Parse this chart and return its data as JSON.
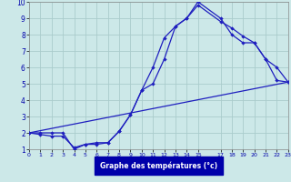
{
  "line1_x": [
    0,
    1,
    2,
    3,
    4,
    5,
    6,
    7,
    8,
    9,
    10,
    11,
    12,
    13,
    14,
    15,
    17,
    18,
    19,
    20,
    21,
    22,
    23
  ],
  "line1_y": [
    2,
    2,
    2,
    2,
    1,
    1.3,
    1.3,
    1.4,
    2.1,
    3.1,
    4.6,
    6.0,
    7.8,
    8.5,
    9.0,
    9.8,
    8.8,
    8.4,
    7.9,
    7.5,
    6.5,
    5.2,
    5.1
  ],
  "line2_x": [
    0,
    1,
    2,
    3,
    4,
    5,
    6,
    7,
    8,
    9,
    10,
    11,
    12,
    13,
    14,
    15,
    17,
    18,
    19,
    20,
    21,
    22,
    23
  ],
  "line2_y": [
    2,
    1.9,
    1.8,
    1.8,
    1.1,
    1.3,
    1.4,
    1.4,
    2.1,
    3.1,
    4.6,
    5.0,
    6.5,
    8.5,
    9.0,
    10.0,
    9.0,
    8.0,
    7.5,
    7.5,
    6.5,
    6.0,
    5.1
  ],
  "line3_x": [
    0,
    23
  ],
  "line3_y": [
    2.0,
    5.1
  ],
  "line_color": "#1f1fbf",
  "bg_color": "#cce8e8",
  "grid_color": "#aacccc",
  "xlabel": "Graphe des températures (°c)",
  "xlabel_bg": "#0000aa",
  "xlabel_color": "#ffffff",
  "ylim": [
    1,
    10
  ],
  "xlim": [
    0,
    23
  ],
  "yticks": [
    1,
    2,
    3,
    4,
    5,
    6,
    7,
    8,
    9,
    10
  ],
  "xtick_positions": [
    0,
    1,
    2,
    3,
    4,
    5,
    6,
    7,
    8,
    9,
    10,
    11,
    12,
    13,
    14,
    15,
    17,
    18,
    19,
    20,
    21,
    22,
    23
  ],
  "xtick_labels": [
    "0",
    "1",
    "2",
    "3",
    "4",
    "5",
    "6",
    "7",
    "8",
    "9",
    "10",
    "11",
    "12",
    "13",
    "14",
    "15",
    "17",
    "18",
    "19",
    "20",
    "21",
    "22",
    "23"
  ]
}
